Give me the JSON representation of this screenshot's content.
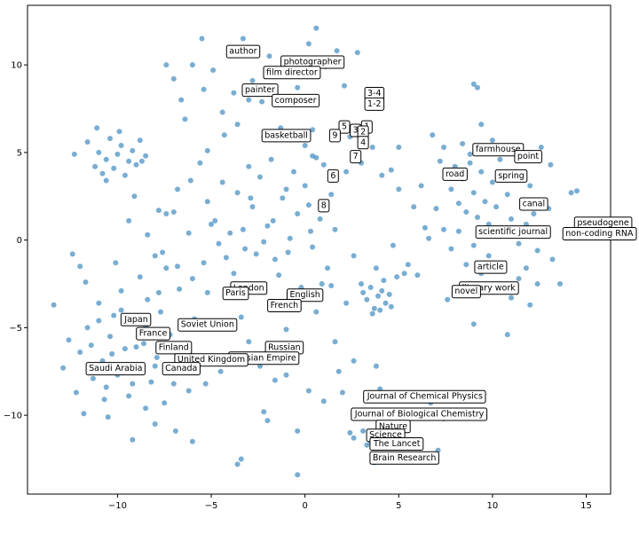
{
  "chart_data": {
    "type": "scatter",
    "title": "",
    "xlabel": "",
    "ylabel": "",
    "xlim": [
      -14.8,
      16.3
    ],
    "ylim": [
      -14.5,
      13.4
    ],
    "xticks": [
      -10,
      -5,
      0,
      5,
      10,
      15
    ],
    "yticks": [
      -10,
      -5,
      0,
      5,
      10
    ],
    "grid": false,
    "legend": "none",
    "point_color": "#1f77b4",
    "points": [
      [
        -13.4,
        -3.7
      ],
      [
        -12.9,
        -7.3
      ],
      [
        -12.6,
        -5.7
      ],
      [
        -12.2,
        -8.7
      ],
      [
        -12.0,
        -6.4
      ],
      [
        -11.6,
        -5.0
      ],
      [
        -11.3,
        -7.9
      ],
      [
        -11.0,
        -3.6
      ],
      [
        -10.8,
        -6.9
      ],
      [
        -10.6,
        -8.4
      ],
      [
        -10.4,
        -5.5
      ],
      [
        -10.2,
        -4.3
      ],
      [
        -10.0,
        -7.7
      ],
      [
        -9.8,
        -2.9
      ],
      [
        -9.6,
        -6.2
      ],
      [
        -9.4,
        -8.9
      ],
      [
        -9.1,
        -4.7
      ],
      [
        -8.9,
        -7.2
      ],
      [
        -8.6,
        -5.9
      ],
      [
        -8.4,
        -3.4
      ],
      [
        -8.2,
        -8.1
      ],
      [
        -7.9,
        -6.7
      ],
      [
        -7.7,
        -4.1
      ],
      [
        -7.5,
        -9.3
      ],
      [
        -7.2,
        -5.4
      ],
      [
        -7.0,
        -7.5
      ],
      [
        -6.7,
        -2.8
      ],
      [
        -6.5,
        -6.0
      ],
      [
        -6.2,
        -8.6
      ],
      [
        -5.9,
        -4.5
      ],
      [
        -11.8,
        -9.9
      ],
      [
        -10.5,
        -10.1
      ],
      [
        -9.2,
        -11.4
      ],
      [
        -8.0,
        -10.5
      ],
      [
        -6.9,
        -10.9
      ],
      [
        -6.0,
        -11.5
      ],
      [
        -11.7,
        -2.4
      ],
      [
        -10.1,
        -1.3
      ],
      [
        -8.8,
        -2.1
      ],
      [
        -7.4,
        -1.6
      ],
      [
        -12.3,
        4.9
      ],
      [
        -11.6,
        5.6
      ],
      [
        -11.2,
        4.2
      ],
      [
        -11.0,
        5.0
      ],
      [
        -10.8,
        3.8
      ],
      [
        -10.6,
        4.6
      ],
      [
        -10.4,
        5.8
      ],
      [
        -10.2,
        4.1
      ],
      [
        -10.0,
        4.9
      ],
      [
        -9.8,
        5.4
      ],
      [
        -9.6,
        3.7
      ],
      [
        -9.4,
        4.5
      ],
      [
        -9.2,
        5.1
      ],
      [
        -9.0,
        4.3
      ],
      [
        -8.8,
        5.7
      ],
      [
        -8.7,
        4.5
      ],
      [
        -8.5,
        4.8
      ],
      [
        -9.9,
        6.2
      ],
      [
        -11.1,
        6.4
      ],
      [
        -10.6,
        3.4
      ],
      [
        -9.1,
        2.5
      ],
      [
        -7.8,
        1.7
      ],
      [
        -7.4,
        1.5
      ],
      [
        -7.0,
        1.6
      ],
      [
        -8.4,
        0.3
      ],
      [
        -7.6,
        -0.7
      ],
      [
        -6.8,
        2.9
      ],
      [
        -6.1,
        3.4
      ],
      [
        -5.6,
        4.4
      ],
      [
        -5.2,
        2.2
      ],
      [
        -4.8,
        1.1
      ],
      [
        -4.4,
        3.3
      ],
      [
        -4.0,
        0.4
      ],
      [
        -3.6,
        2.7
      ],
      [
        -3.2,
        -0.5
      ],
      [
        -2.8,
        1.9
      ],
      [
        -2.4,
        3.6
      ],
      [
        -2.0,
        0.8
      ],
      [
        -1.6,
        -1.1
      ],
      [
        -1.2,
        2.4
      ],
      [
        -0.8,
        0.1
      ],
      [
        -0.4,
        1.5
      ],
      [
        0.0,
        3.1
      ],
      [
        0.4,
        -0.4
      ],
      [
        0.8,
        1.2
      ],
      [
        1.2,
        -1.6
      ],
      [
        1.6,
        0.6
      ],
      [
        -2.6,
        -0.8
      ],
      [
        -1.4,
        -2.0
      ],
      [
        -0.2,
        -2.7
      ],
      [
        0.9,
        -2.5
      ],
      [
        -3.8,
        -1.9
      ],
      [
        -4.6,
        -0.2
      ],
      [
        -5.4,
        -1.3
      ],
      [
        -3.0,
        4.2
      ],
      [
        -1.8,
        4.6
      ],
      [
        -0.6,
        3.9
      ],
      [
        0.6,
        4.7
      ],
      [
        -2.2,
        -0.1
      ],
      [
        -0.9,
        -0.7
      ],
      [
        0.3,
        0.5
      ],
      [
        -1.7,
        1.1
      ],
      [
        -3.3,
        0.6
      ],
      [
        -4.2,
        -1.0
      ],
      [
        -5.0,
        0.9
      ],
      [
        -6.2,
        0.4
      ],
      [
        -2.9,
        2.4
      ],
      [
        -1.0,
        2.9
      ],
      [
        0.2,
        2.0
      ],
      [
        1.4,
        2.6
      ],
      [
        -6.4,
        6.9
      ],
      [
        -6.0,
        10.0
      ],
      [
        -5.4,
        8.6
      ],
      [
        -4.9,
        9.7
      ],
      [
        -4.4,
        7.3
      ],
      [
        -3.8,
        8.4
      ],
      [
        -3.3,
        11.5
      ],
      [
        -2.8,
        9.1
      ],
      [
        -2.3,
        7.9
      ],
      [
        -1.9,
        10.5
      ],
      [
        -1.4,
        8.1
      ],
      [
        -0.9,
        9.4
      ],
      [
        -0.4,
        8.7
      ],
      [
        0.2,
        11.2
      ],
      [
        0.6,
        12.1
      ],
      [
        1.1,
        9.9
      ],
      [
        1.7,
        10.8
      ],
      [
        2.1,
        8.8
      ],
      [
        2.8,
        10.7
      ],
      [
        -3.6,
        6.6
      ],
      [
        -7.0,
        9.2
      ],
      [
        -6.6,
        8.0
      ],
      [
        -5.5,
        11.5
      ],
      [
        -4.3,
        6.0
      ],
      [
        -1.3,
        6.4
      ],
      [
        0.0,
        5.4
      ],
      [
        0.4,
        4.8
      ],
      [
        -5.2,
        5.1
      ],
      [
        -7.4,
        10.0
      ],
      [
        -3.0,
        8.0
      ],
      [
        -4.2,
        -3.2
      ],
      [
        -3.4,
        -4.4
      ],
      [
        -2.6,
        -2.9
      ],
      [
        -1.8,
        -3.8
      ],
      [
        -1.0,
        -5.1
      ],
      [
        -0.2,
        -3.3
      ],
      [
        0.6,
        -4.1
      ],
      [
        1.4,
        -2.6
      ],
      [
        2.2,
        -3.6
      ],
      [
        -5.2,
        -3.0
      ],
      [
        -3.0,
        -5.8
      ],
      [
        -2.0,
        -6.5
      ],
      [
        -0.6,
        -6.0
      ],
      [
        -1.6,
        -8.0
      ],
      [
        -2.2,
        -9.8
      ],
      [
        -2.0,
        -10.3
      ],
      [
        -3.4,
        -12.5
      ],
      [
        -3.6,
        -12.8
      ],
      [
        -0.4,
        -13.4
      ],
      [
        1.0,
        -9.2
      ],
      [
        3.1,
        -3.0
      ],
      [
        3.3,
        -3.4
      ],
      [
        3.5,
        -2.7
      ],
      [
        3.7,
        -3.9
      ],
      [
        3.9,
        -3.2
      ],
      [
        4.1,
        -2.9
      ],
      [
        4.3,
        -3.6
      ],
      [
        4.5,
        -3.1
      ],
      [
        3.6,
        -4.2
      ],
      [
        4.0,
        -4.0
      ],
      [
        4.2,
        -2.3
      ],
      [
        3.0,
        -2.5
      ],
      [
        4.6,
        -3.8
      ],
      [
        3.8,
        -1.6
      ],
      [
        4.9,
        -2.1
      ],
      [
        2.6,
        -0.9
      ],
      [
        5.5,
        -1.4
      ],
      [
        6.0,
        -2.0
      ],
      [
        6.6,
        0.1
      ],
      [
        7.6,
        -3.4
      ],
      [
        2.4,
        -11.0
      ],
      [
        2.6,
        -11.3
      ],
      [
        3.1,
        -10.9
      ],
      [
        3.3,
        -11.7
      ],
      [
        3.5,
        -11.5
      ],
      [
        3.7,
        -12.7
      ],
      [
        4.2,
        -12.4
      ],
      [
        5.2,
        -11.8
      ],
      [
        6.3,
        -12.5
      ],
      [
        7.1,
        -12.0
      ],
      [
        3.4,
        -9.1
      ],
      [
        4.0,
        -8.5
      ],
      [
        3.8,
        -7.2
      ],
      [
        4.5,
        -10.0
      ],
      [
        5.5,
        -9.1
      ],
      [
        6.2,
        -10.0
      ],
      [
        6.7,
        -9.3
      ],
      [
        7.4,
        -10.2
      ],
      [
        8.0,
        -10.0
      ],
      [
        8.9,
        -10.1
      ],
      [
        7.2,
        4.5
      ],
      [
        7.6,
        3.7
      ],
      [
        7.8,
        2.9
      ],
      [
        8.0,
        4.2
      ],
      [
        8.2,
        2.1
      ],
      [
        8.4,
        3.5
      ],
      [
        8.6,
        1.6
      ],
      [
        8.8,
        4.4
      ],
      [
        9.0,
        2.7
      ],
      [
        9.2,
        1.3
      ],
      [
        9.4,
        3.9
      ],
      [
        9.6,
        2.2
      ],
      [
        9.8,
        0.9
      ],
      [
        10.0,
        3.3
      ],
      [
        10.2,
        1.9
      ],
      [
        10.4,
        4.6
      ],
      [
        10.6,
        0.4
      ],
      [
        10.8,
        2.6
      ],
      [
        11.0,
        1.2
      ],
      [
        11.2,
        3.9
      ],
      [
        11.4,
        -0.2
      ],
      [
        11.6,
        2.3
      ],
      [
        11.8,
        0.9
      ],
      [
        12.0,
        3.1
      ],
      [
        12.2,
        1.5
      ],
      [
        12.4,
        -0.6
      ],
      [
        12.6,
        2.0
      ],
      [
        12.8,
        0.3
      ],
      [
        13.0,
        1.8
      ],
      [
        13.2,
        -1.1
      ],
      [
        7.0,
        1.8
      ],
      [
        7.4,
        0.6
      ],
      [
        7.8,
        -0.5
      ],
      [
        8.2,
        0.5
      ],
      [
        8.6,
        -1.4
      ],
      [
        9.0,
        -0.3
      ],
      [
        9.4,
        -1.9
      ],
      [
        9.8,
        -0.9
      ],
      [
        10.2,
        -2.6
      ],
      [
        10.6,
        -1.5
      ],
      [
        11.0,
        -3.3
      ],
      [
        11.4,
        -2.2
      ],
      [
        11.8,
        -1.6
      ],
      [
        12.4,
        -2.5
      ],
      [
        13.6,
        -2.5
      ],
      [
        14.2,
        2.7
      ],
      [
        14.5,
        2.8
      ],
      [
        12.0,
        -3.7
      ],
      [
        9.0,
        -4.8
      ],
      [
        10.8,
        -5.4
      ],
      [
        6.8,
        6.0
      ],
      [
        9.0,
        8.9
      ],
      [
        9.2,
        8.7
      ],
      [
        10.0,
        5.7
      ],
      [
        10.5,
        5.2
      ],
      [
        11.6,
        5.0
      ],
      [
        12.6,
        5.3
      ],
      [
        13.1,
        4.3
      ],
      [
        8.8,
        4.9
      ],
      [
        7.4,
        5.3
      ],
      [
        9.4,
        6.6
      ],
      [
        8.4,
        5.5
      ],
      [
        6.2,
        3.1
      ],
      [
        5.8,
        1.9
      ],
      [
        6.4,
        0.7
      ],
      [
        5.0,
        2.9
      ],
      [
        4.7,
        -0.3
      ],
      [
        5.3,
        -1.9
      ],
      [
        1.6,
        -5.8
      ],
      [
        2.6,
        -6.9
      ],
      [
        -12.4,
        -0.8
      ],
      [
        -12.0,
        -1.5
      ],
      [
        -9.4,
        1.1
      ],
      [
        -8.0,
        -0.9
      ],
      [
        -6.8,
        -1.5
      ],
      [
        -6.0,
        -2.2
      ],
      [
        -7.8,
        -3.0
      ],
      [
        -8.5,
        -4.9
      ],
      [
        -9.8,
        -4.0
      ],
      [
        -11.0,
        -4.6
      ],
      [
        -11.4,
        -6.0
      ],
      [
        -10.3,
        -6.5
      ],
      [
        -9.0,
        -6.1
      ],
      [
        -8.0,
        -7.2
      ],
      [
        -7.0,
        -8.2
      ],
      [
        -6.4,
        -6.9
      ],
      [
        -7.4,
        -6.0
      ],
      [
        -9.2,
        -8.2
      ],
      [
        -10.7,
        -9.1
      ],
      [
        -8.5,
        -9.6
      ],
      [
        -3.8,
        -6.9
      ],
      [
        -4.5,
        -7.5
      ],
      [
        -5.3,
        -8.2
      ],
      [
        -2.4,
        -7.2
      ],
      [
        -1.0,
        -7.7
      ],
      [
        0.2,
        -8.6
      ],
      [
        -0.4,
        -10.9
      ],
      [
        1.8,
        -7.5
      ],
      [
        2.0,
        -8.7
      ],
      [
        4.1,
        3.7
      ],
      [
        2.2,
        3.9
      ],
      [
        3.0,
        4.4
      ],
      [
        4.6,
        4.0
      ],
      [
        3.6,
        5.3
      ],
      [
        1.0,
        4.3
      ],
      [
        2.4,
        5.9
      ],
      [
        5.0,
        5.3
      ],
      [
        0.4,
        6.3
      ],
      [
        -0.6,
        5.9
      ],
      [
        -2.2,
        5.9
      ]
    ],
    "annotations": [
      {
        "text": "author",
        "x": -3.3,
        "y": 10.8
      },
      {
        "text": "photographer",
        "x": 0.4,
        "y": 10.2
      },
      {
        "text": "film director",
        "x": -0.7,
        "y": 9.6
      },
      {
        "text": "painter",
        "x": -2.4,
        "y": 8.6
      },
      {
        "text": "composer",
        "x": -0.5,
        "y": 8.0
      },
      {
        "text": "basketball",
        "x": -1.0,
        "y": 6.0
      },
      {
        "text": "3-4",
        "x": 3.7,
        "y": 8.4
      },
      {
        "text": "1-2",
        "x": 3.7,
        "y": 7.8
      },
      {
        "text": "5",
        "x": 2.1,
        "y": 6.5
      },
      {
        "text": "3",
        "x": 2.7,
        "y": 6.3
      },
      {
        "text": "1",
        "x": 3.3,
        "y": 6.5
      },
      {
        "text": "2",
        "x": 3.1,
        "y": 6.2
      },
      {
        "text": "9",
        "x": 1.6,
        "y": 6.0
      },
      {
        "text": "4",
        "x": 3.1,
        "y": 5.6
      },
      {
        "text": "7",
        "x": 2.7,
        "y": 4.8
      },
      {
        "text": "6",
        "x": 1.5,
        "y": 3.7
      },
      {
        "text": "8",
        "x": 1.0,
        "y": 2.0
      },
      {
        "text": "farmhouse",
        "x": 10.3,
        "y": 5.2
      },
      {
        "text": "point",
        "x": 11.9,
        "y": 4.8
      },
      {
        "text": "road",
        "x": 8.0,
        "y": 3.8
      },
      {
        "text": "spring",
        "x": 11.0,
        "y": 3.7
      },
      {
        "text": "canal",
        "x": 12.2,
        "y": 2.1
      },
      {
        "text": "pseudogene",
        "x": 15.9,
        "y": 1.0
      },
      {
        "text": "non-coding RNA",
        "x": 15.9,
        "y": 0.4
      },
      {
        "text": "scientific journal",
        "x": 11.1,
        "y": 0.5
      },
      {
        "text": "article",
        "x": 9.9,
        "y": -1.5
      },
      {
        "text": "literary work",
        "x": 9.8,
        "y": -2.7
      },
      {
        "text": "novel",
        "x": 8.6,
        "y": -2.9
      },
      {
        "text": "London",
        "x": -3.0,
        "y": -2.7
      },
      {
        "text": "Paris",
        "x": -3.7,
        "y": -3.0
      },
      {
        "text": "English",
        "x": 0.0,
        "y": -3.1
      },
      {
        "text": "French",
        "x": -1.1,
        "y": -3.7
      },
      {
        "text": "Japan",
        "x": -9.0,
        "y": -4.5
      },
      {
        "text": "Soviet Union",
        "x": -5.2,
        "y": -4.8
      },
      {
        "text": "France",
        "x": -8.1,
        "y": -5.3
      },
      {
        "text": "Finland",
        "x": -7.0,
        "y": -6.1
      },
      {
        "text": "Russian",
        "x": -1.1,
        "y": -6.1
      },
      {
        "text": "Russian Empire",
        "x": -2.2,
        "y": -6.7
      },
      {
        "text": "United Kingdom",
        "x": -5.0,
        "y": -6.8
      },
      {
        "text": "Saudi Arabia",
        "x": -10.1,
        "y": -7.3
      },
      {
        "text": "Canada",
        "x": -6.6,
        "y": -7.3
      },
      {
        "text": "Journal of Chemical Physics",
        "x": 6.4,
        "y": -8.9
      },
      {
        "text": "Journal of Biological Chemistry",
        "x": 6.1,
        "y": -9.9
      },
      {
        "text": "Nature",
        "x": 4.7,
        "y": -10.6
      },
      {
        "text": "Science",
        "x": 4.3,
        "y": -11.1
      },
      {
        "text": "The Lancet",
        "x": 4.9,
        "y": -11.6
      },
      {
        "text": "Brain Research",
        "x": 5.3,
        "y": -12.4
      }
    ]
  }
}
